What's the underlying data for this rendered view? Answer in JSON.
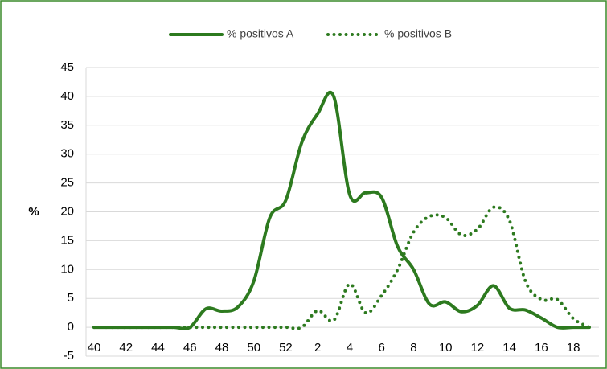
{
  "chart_data": {
    "type": "line",
    "categories": [
      "40",
      null,
      "42",
      null,
      "44",
      null,
      "46",
      null,
      "48",
      null,
      "50",
      null,
      "52",
      null,
      "2",
      null,
      "4",
      null,
      "6",
      null,
      "8",
      null,
      "10",
      null,
      "12",
      null,
      "14",
      null,
      "16",
      null,
      "18",
      null
    ],
    "series": [
      {
        "name": "% positivos A",
        "color": "#2d7a1f",
        "style": "solid",
        "values": [
          0,
          0,
          0,
          0,
          0,
          0,
          0,
          3.2,
          2.8,
          3.5,
          8,
          19,
          22,
          32,
          37,
          40,
          23,
          23.3,
          22.5,
          14,
          10,
          4,
          4.4,
          2.7,
          3.8,
          7.2,
          3.3,
          3,
          1.6,
          0,
          0,
          0
        ]
      },
      {
        "name": "% positivos B",
        "color": "#2d7a1f",
        "style": "dotted",
        "values": [
          0,
          0,
          0,
          0,
          0,
          0,
          0,
          0,
          0,
          0,
          0,
          0,
          0,
          0,
          2.9,
          1.2,
          7.5,
          2.5,
          5.5,
          10,
          16.5,
          19.2,
          19,
          16,
          17,
          20.8,
          18.5,
          8,
          4.8,
          4.8,
          1.5,
          0
        ]
      }
    ],
    "y_label": "%",
    "ylim": [
      -5,
      45
    ],
    "yticks": [
      -5,
      0,
      5,
      10,
      15,
      20,
      25,
      30,
      35,
      40,
      45
    ],
    "grid": true
  }
}
